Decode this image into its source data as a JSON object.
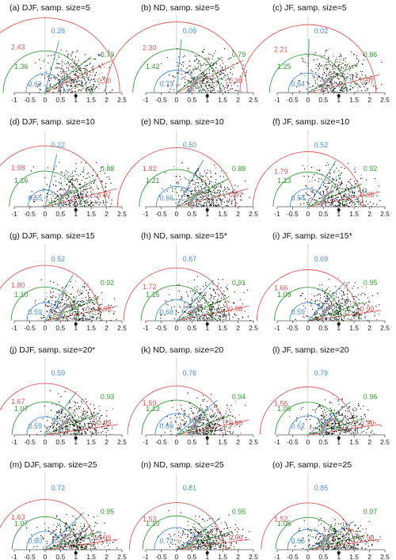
{
  "colors": {
    "red": "#dd5a5a",
    "blue": "#4a8fd0",
    "green": "#3a9b3a",
    "grey": "#9a9a9a",
    "points": "#111111"
  },
  "chart_data": [
    {
      "type": "scatter",
      "title": "(a) DJF, samp. size=5",
      "xlim": [
        -1,
        2.5
      ],
      "ylim": [
        0,
        1.6
      ],
      "xticks": [
        "-1",
        "-0.5",
        "0",
        "0.5",
        "1",
        "1.5",
        "2",
        "2.5"
      ],
      "red": {
        "radius": "2.43",
        "corr": "0.90"
      },
      "blue": {
        "radius": "0.62",
        "corr": "0.26"
      },
      "green": {
        "radius": "1.36",
        "corr": "0.79"
      }
    },
    {
      "type": "scatter",
      "title": "(b) ND, samp. size=5",
      "xlim": [
        -1,
        2.5
      ],
      "ylim": [
        0,
        1.6
      ],
      "xticks": [
        "-1",
        "-0.5",
        "0",
        "0.5",
        "1",
        "1.5",
        "2",
        "2.5"
      ],
      "red": {
        "radius": "2.30",
        "corr": "0.90"
      },
      "blue": {
        "radius": "0.73",
        "corr": "0.09"
      },
      "green": {
        "radius": "1.42",
        "corr": "0.79"
      }
    },
    {
      "type": "scatter",
      "title": "(c) JF, samp. size=5",
      "xlim": [
        -1,
        2.5
      ],
      "ylim": [
        0,
        1.6
      ],
      "xticks": [
        "-1",
        "-0.5",
        "0",
        "0.5",
        "1",
        "1.5",
        "2",
        "2.5"
      ],
      "red": {
        "radius": "2.21",
        "corr": "0.97"
      },
      "blue": {
        "radius": "0.64",
        "corr": "0.02"
      },
      "green": {
        "radius": "1.25",
        "corr": "0.86"
      }
    },
    {
      "type": "scatter",
      "title": "(d) DJF, samp. size=10",
      "xlim": [
        -1,
        2.5
      ],
      "ylim": [
        0,
        1.6
      ],
      "xticks": [
        "-1",
        "-0.5",
        "0",
        "0.5",
        "1",
        "1.5",
        "2",
        "2.5"
      ],
      "red": {
        "radius": "1.98",
        "corr": "0.97"
      },
      "blue": {
        "radius": "0.55",
        "corr": "0.22"
      },
      "green": {
        "radius": "1.16",
        "corr": "0.88"
      }
    },
    {
      "type": "scatter",
      "title": "(e) ND, samp. size=10",
      "xlim": [
        -1,
        2.5
      ],
      "ylim": [
        0,
        1.6
      ],
      "xticks": [
        "-1",
        "-0.5",
        "0",
        "0.5",
        "1",
        "1.5",
        "2",
        "2.5"
      ],
      "red": {
        "radius": "1.92",
        "corr": "0.97"
      },
      "blue": {
        "radius": "0.66",
        "corr": "0.50"
      },
      "green": {
        "radius": "1.21",
        "corr": "0.88"
      }
    },
    {
      "type": "scatter",
      "title": "(f) JF, samp. size=10",
      "xlim": [
        -1,
        2.5
      ],
      "ylim": [
        0,
        1.6
      ],
      "xticks": [
        "-1",
        "-0.5",
        "0",
        "0.5",
        "1",
        "1.5",
        "2",
        "2.5"
      ],
      "red": {
        "radius": "1.79",
        "corr": "0.98"
      },
      "blue": {
        "radius": "0.58",
        "corr": "0.52"
      },
      "green": {
        "radius": "1.13",
        "corr": "0.92"
      }
    },
    {
      "type": "scatter",
      "title": "(g) DJF, samp. size=15",
      "xlim": [
        -1,
        2.5
      ],
      "ylim": [
        0,
        1.6
      ],
      "xticks": [
        "-1",
        "-0.5",
        "0",
        "0.5",
        "1",
        "1.5",
        "2",
        "2.5"
      ],
      "red": {
        "radius": "1.80",
        "corr": "0.98"
      },
      "blue": {
        "radius": "0.59",
        "corr": "0.52"
      },
      "green": {
        "radius": "1.10",
        "corr": "0.92"
      }
    },
    {
      "type": "scatter",
      "title": "(h) ND, samp. size=15*",
      "xlim": [
        -1,
        2.5
      ],
      "ylim": [
        0,
        1.6
      ],
      "xticks": [
        "-1",
        "-0.5",
        "0",
        "0.5",
        "1",
        "1.5",
        "2",
        "2.5"
      ],
      "red": {
        "radius": "1.72",
        "corr": "0.98"
      },
      "blue": {
        "radius": "0.68",
        "corr": "0.67"
      },
      "green": {
        "radius": "1.15",
        "corr": "0.91"
      }
    },
    {
      "type": "scatter",
      "title": "(i) JF, samp. size=15*",
      "xlim": [
        -1,
        2.5
      ],
      "ylim": [
        0,
        1.6
      ],
      "xticks": [
        "-1",
        "-0.5",
        "0",
        "0.5",
        "1",
        "1.5",
        "2",
        "2.5"
      ],
      "red": {
        "radius": "1.66",
        "corr": "0.99"
      },
      "blue": {
        "radius": "0.59",
        "corr": "0.69"
      },
      "green": {
        "radius": "1.09",
        "corr": "0.95"
      }
    },
    {
      "type": "scatter",
      "title": "(j) DJF, samp. size=20*",
      "xlim": [
        -1,
        2.5
      ],
      "ylim": [
        0,
        1.6
      ],
      "xticks": [
        "-1",
        "-0.5",
        "0",
        "0.5",
        "1",
        "1.5",
        "2",
        "2.5"
      ],
      "red": {
        "radius": "1.67",
        "corr": "0.99"
      },
      "blue": {
        "radius": "0.59",
        "corr": "0.59"
      },
      "green": {
        "radius": "1.07",
        "corr": "0.93"
      }
    },
    {
      "type": "scatter",
      "title": "(k) ND, samp. size=20",
      "xlim": [
        -1,
        2.5
      ],
      "ylim": [
        0,
        1.6
      ],
      "xticks": [
        "-1",
        "-0.5",
        "0",
        "0.5",
        "1",
        "1.5",
        "2",
        "2.5"
      ],
      "red": {
        "radius": "1.59",
        "corr": "0.98"
      },
      "blue": {
        "radius": "0.69",
        "corr": "0.76"
      },
      "green": {
        "radius": "1.13",
        "corr": "0.94"
      }
    },
    {
      "type": "scatter",
      "title": "(l) JF, samp. size=20",
      "xlim": [
        -1,
        2.5
      ],
      "ylim": [
        0,
        1.6
      ],
      "xticks": [
        "-1",
        "-0.5",
        "0",
        "0.5",
        "1",
        "1.5",
        "2",
        "2.5"
      ],
      "red": {
        "radius": "1.56",
        "corr": "0.99"
      },
      "blue": {
        "radius": "0.62",
        "corr": "0.79"
      },
      "green": {
        "radius": "1.06",
        "corr": "0.96"
      }
    },
    {
      "type": "scatter",
      "title": "(m) DJF, samp. size=25",
      "xlim": [
        -1,
        2.5
      ],
      "ylim": [
        0,
        1.6
      ],
      "xticks": [
        "-1",
        "-0.5",
        "0",
        "0.5",
        "1",
        "1.5",
        "2",
        "2.5"
      ],
      "red": {
        "radius": "1.63",
        "corr": "0.99"
      },
      "blue": {
        "radius": "0.60",
        "corr": "0.72"
      },
      "green": {
        "radius": "1.07",
        "corr": "0.95"
      }
    },
    {
      "type": "scatter",
      "title": "(n) ND, samp. size=25",
      "xlim": [
        -1,
        2.5
      ],
      "ylim": [
        0,
        1.6
      ],
      "xticks": [
        "-1",
        "-0.5",
        "0",
        "0.5",
        "1",
        "1.5",
        "2",
        "2.5"
      ],
      "red": {
        "radius": "1.53",
        "corr": "0.99"
      },
      "blue": {
        "radius": "0.72",
        "corr": "0.81"
      },
      "green": {
        "radius": "1.10",
        "corr": "0.95"
      }
    },
    {
      "type": "scatter",
      "title": "(o) JF, samp. size=25",
      "xlim": [
        -1,
        2.5
      ],
      "ylim": [
        0,
        1.6
      ],
      "xticks": [
        "-1",
        "-0.5",
        "0",
        "0.5",
        "1",
        "1.5",
        "2",
        "2.5"
      ],
      "red": {
        "radius": "1.52",
        "corr": "0.99"
      },
      "blue": {
        "radius": "0.66",
        "corr": "0.85"
      },
      "green": {
        "radius": "1.05",
        "corr": "0.97"
      }
    }
  ]
}
